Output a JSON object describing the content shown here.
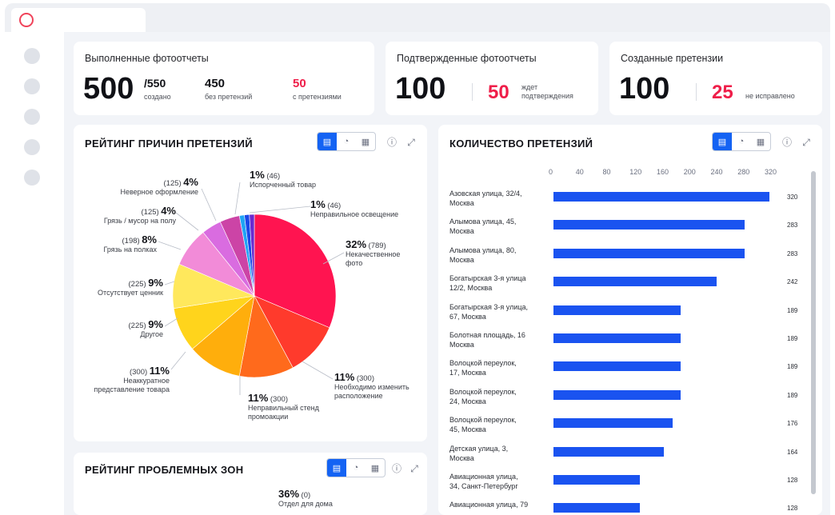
{
  "stats": {
    "card1": {
      "title": "Выполненные фотоотчеты",
      "main_value": "500",
      "main_total": "/550",
      "main_label": "создано",
      "no_claims_value": "450",
      "no_claims_label": "без претензий",
      "with_claims_value": "50",
      "with_claims_label": "с претензиями"
    },
    "card2": {
      "title": "Подтвержденные фотоотчеты",
      "main_value": "100",
      "waiting_value": "50",
      "waiting_label_1": "ждет",
      "waiting_label_2": "подтверждения"
    },
    "card3": {
      "title": "Созданные претензии",
      "main_value": "100",
      "unfixed_value": "25",
      "unfixed_label": "не исправлено"
    }
  },
  "toolbar_icons": [
    "bar-chart-icon",
    "pie-chart-icon",
    "table-icon",
    "info-icon",
    "expand-icon"
  ],
  "colors": {
    "accent": "#1463f3",
    "red": "#ef1e49",
    "bar": "#1a53f0"
  },
  "pie_section": {
    "title": "РЕЙТИНГ ПРИЧИН ПРЕТЕНЗИЙ"
  },
  "bar_section": {
    "title": "КОЛИЧЕСТВО ПРЕТЕНЗИЙ"
  },
  "zones_section": {
    "title": "РЕЙТИНГ ПРОБЛЕМНЫХ ЗОН",
    "label_pct": "36%",
    "label_cnt": "(0)",
    "label_name": "Отдел для дома"
  },
  "chart_data": [
    {
      "type": "pie",
      "slices": [
        {
          "pct": "32%",
          "count": "(789)",
          "value": 32,
          "label_1": "Некачественное",
          "label_2": "фото",
          "color": "#ff1450"
        },
        {
          "pct": "11%",
          "count": "(300)",
          "value": 11,
          "label_1": "Необходимо изменить",
          "label_2": "расположение",
          "color": "#ff3a2c"
        },
        {
          "pct": "11%",
          "count": "(300)",
          "value": 11,
          "label_1": "Неправильный стенд",
          "label_2": "промоакции",
          "color": "#ff6a1c"
        },
        {
          "pct": "11%",
          "count": "(300)",
          "value": 11,
          "label_1": "Неаккуратное",
          "label_2": "представление товара",
          "color": "#ffae0c"
        },
        {
          "pct": "9%",
          "count": "(225)",
          "value": 9,
          "label_1": "Другое",
          "label_2": "",
          "color": "#ffd41c"
        },
        {
          "pct": "9%",
          "count": "(225)",
          "value": 9,
          "label_1": "Отсутствует ценник",
          "label_2": "",
          "color": "#ffe85c"
        },
        {
          "pct": "8%",
          "count": "(198)",
          "value": 8,
          "label_1": "Грязь на полках",
          "label_2": "",
          "color": "#f28bd8"
        },
        {
          "pct": "4%",
          "count": "(125)",
          "value": 4,
          "label_1": "Грязь / мусор на полу",
          "label_2": "",
          "color": "#d96ce0"
        },
        {
          "pct": "4%",
          "count": "(125)",
          "value": 4,
          "label_1": "Неверное оформление",
          "label_2": "",
          "color": "#cc44a6"
        },
        {
          "pct": "1%",
          "count": "(46)",
          "value": 1,
          "label_1": "Испорченный товар",
          "label_2": "",
          "color": "#1fa4f5"
        },
        {
          "pct": "1%",
          "count": "(46)",
          "value": 1,
          "label_1": "Неправильное освещение",
          "label_2": "",
          "color": "#1a48e8"
        }
      ],
      "extra_slice_color": "#6a2bd0"
    },
    {
      "type": "bar",
      "orientation": "horizontal",
      "xticks": [
        "0",
        "40",
        "80",
        "120",
        "160",
        "200",
        "240",
        "280",
        "320"
      ],
      "xlim": [
        0,
        330
      ],
      "categories": [
        [
          "Азовская улица, 32/4,",
          "Москва"
        ],
        [
          "Алымова улица, 45,",
          "Москва"
        ],
        [
          "Алымова улица, 80,",
          "Москва"
        ],
        [
          "Богатырская 3-я улица",
          "12/2, Москва"
        ],
        [
          "Богатырская 3-я улица,",
          "67, Москва"
        ],
        [
          "Болотная площадь, 16",
          "Москва"
        ],
        [
          "Волоцкой переулок,",
          "17, Москва"
        ],
        [
          "Волоцкой переулок,",
          "24, Москва"
        ],
        [
          "Волоцкой переулок,",
          "45, Москва"
        ],
        [
          "Детская улица, 3,",
          "Москва"
        ],
        [
          "Авиационная улица,",
          "34, Санкт-Петербург"
        ],
        [
          "Авиационная улица, 79",
          ""
        ]
      ],
      "values": [
        320,
        283,
        283,
        242,
        189,
        189,
        189,
        189,
        176,
        164,
        128,
        128
      ],
      "value_labels": [
        "320",
        "283",
        "283",
        "242",
        "189",
        "189",
        "189",
        "189",
        "176",
        "164",
        "128",
        "128"
      ]
    }
  ]
}
